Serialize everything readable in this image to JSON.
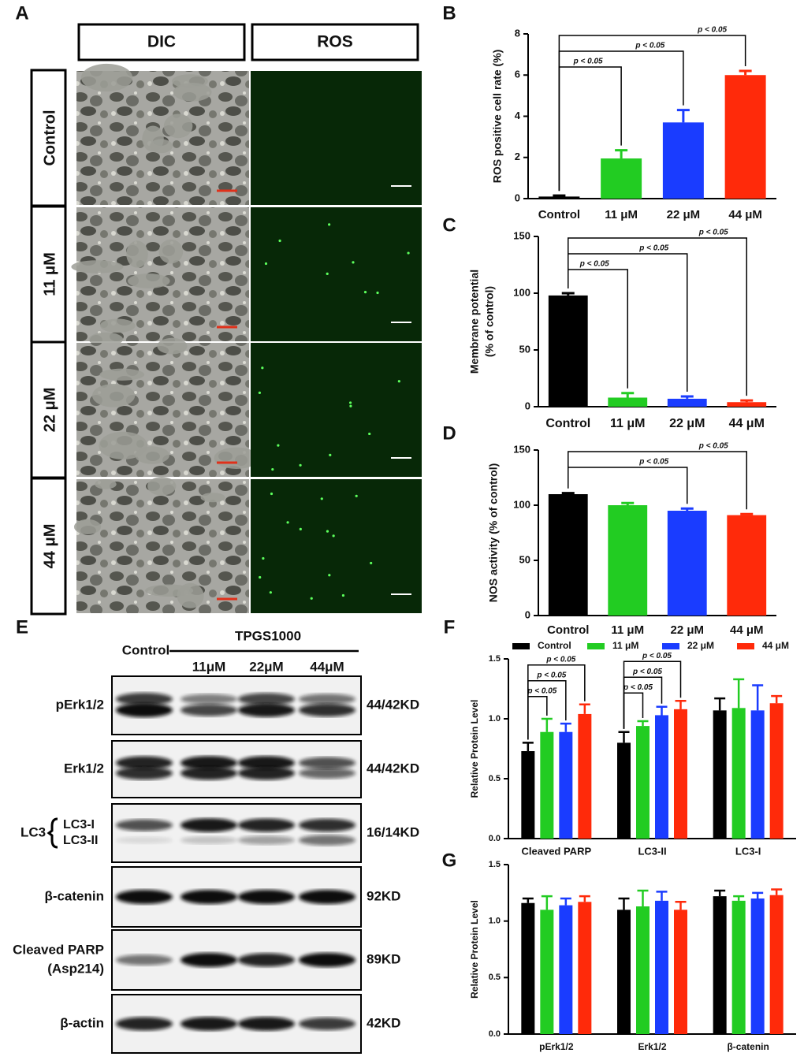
{
  "panel_labels": [
    "A",
    "B",
    "C",
    "D",
    "E",
    "F",
    "G"
  ],
  "microscopy": {
    "columns": [
      "DIC",
      "ROS"
    ],
    "rows": [
      "Control",
      "11 μM",
      "22 μM",
      "44 μM"
    ]
  },
  "western_blot": {
    "control_label": "Control",
    "treatment": "TPGS1000",
    "lanes": [
      "11μM",
      "22μM",
      "44μM"
    ],
    "rows": [
      {
        "labels": [
          "pErk1/2"
        ],
        "size": "44/42KD"
      },
      {
        "labels": [
          "Erk1/2"
        ],
        "size": "44/42KD"
      },
      {
        "group": "LC3",
        "labels": [
          "LC3-I",
          "LC3-II"
        ],
        "size": "16/14KD"
      },
      {
        "labels": [
          "β-catenin"
        ],
        "size": "92KD"
      },
      {
        "labels": [
          "Cleaved PARP",
          "(Asp214)"
        ],
        "size": "89KD"
      },
      {
        "labels": [
          "β-actin"
        ],
        "size": "42KD"
      }
    ]
  },
  "chart_data": [
    {
      "type": "bar",
      "ylabel": [
        "ROS positive cell rate (%)"
      ],
      "categories": [
        "Control",
        "11 μM",
        "22 μM",
        "44 μM"
      ],
      "values": [
        0.1,
        1.95,
        3.7,
        6.0
      ],
      "errors": [
        0.05,
        0.4,
        0.6,
        0.2
      ],
      "colors": [
        "#000000",
        "#22cc22",
        "#1a3cff",
        "#ff2a0a"
      ],
      "annotations": [
        null,
        "p < 0.05",
        "p < 0.05",
        "p < 0.05"
      ],
      "ylim": [
        0,
        8
      ],
      "yticks": [
        0,
        2,
        4,
        6,
        8
      ]
    },
    {
      "type": "bar",
      "ylabel": [
        "Membrane potential",
        "(% of control)"
      ],
      "categories": [
        "Control",
        "11 μM",
        "22 μM",
        "44 μM"
      ],
      "values": [
        98,
        8,
        7,
        4
      ],
      "errors": [
        2,
        4,
        2,
        1.5
      ],
      "colors": [
        "#000000",
        "#22cc22",
        "#1a3cff",
        "#ff2a0a"
      ],
      "annotations": [
        null,
        "p < 0.05",
        "p < 0.05",
        "p < 0.05"
      ],
      "ylim": [
        0,
        150
      ],
      "yticks": [
        0,
        50,
        100,
        150
      ]
    },
    {
      "type": "bar",
      "ylabel": [
        "NOS activity  (% of control)"
      ],
      "categories": [
        "Control",
        "11 μM",
        "22 μM",
        "44 μM"
      ],
      "values": [
        110,
        100,
        95,
        91
      ],
      "errors": [
        1,
        2,
        2,
        1
      ],
      "colors": [
        "#000000",
        "#22cc22",
        "#1a3cff",
        "#ff2a0a"
      ],
      "annotations": [
        null,
        null,
        "p < 0.05",
        "p < 0.05"
      ],
      "ylim": [
        0,
        150
      ],
      "yticks": [
        0,
        50,
        100,
        150
      ]
    },
    {
      "type": "grouped_bar",
      "ylabel": [
        "Relative Protein Level"
      ],
      "legend": "top",
      "categories": [
        "Cleaved PARP",
        "LC3-II",
        "LC3-I"
      ],
      "series": [
        {
          "name": "Control",
          "color": "#000000",
          "values": [
            0.73,
            0.8,
            1.07
          ],
          "errors": [
            0.07,
            0.09,
            0.1
          ]
        },
        {
          "name": "11 μM",
          "color": "#22cc22",
          "values": [
            0.89,
            0.94,
            1.09
          ],
          "errors": [
            0.11,
            0.04,
            0.24
          ],
          "annotations": [
            "p < 0.05",
            "p < 0.05",
            null
          ]
        },
        {
          "name": "22 μM",
          "color": "#1a3cff",
          "values": [
            0.89,
            1.03,
            1.07
          ],
          "errors": [
            0.07,
            0.07,
            0.21
          ],
          "annotations": [
            "p < 0.05",
            "p < 0.05",
            null
          ]
        },
        {
          "name": "44 μM",
          "color": "#ff2a0a",
          "values": [
            1.04,
            1.08,
            1.13
          ],
          "errors": [
            0.08,
            0.07,
            0.06
          ],
          "annotations": [
            "p < 0.05",
            "p < 0.05",
            null
          ]
        }
      ],
      "ylim": [
        0,
        1.5
      ],
      "yticks": [
        {
          "value": 0,
          "label": "0.0"
        },
        0.5,
        {
          "value": 1,
          "label": "1.0"
        },
        1.5
      ]
    },
    {
      "type": "grouped_bar",
      "ylabel": [
        "Relative Protein Level"
      ],
      "categories": [
        "pErk1/2",
        "Erk1/2",
        "β-catenin"
      ],
      "series": [
        {
          "name": "Control",
          "color": "#000000",
          "values": [
            1.16,
            1.1,
            1.22
          ],
          "errors": [
            0.04,
            0.1,
            0.05
          ]
        },
        {
          "name": "11 μM",
          "color": "#22cc22",
          "values": [
            1.1,
            1.13,
            1.18
          ],
          "errors": [
            0.12,
            0.14,
            0.04
          ]
        },
        {
          "name": "22 μM",
          "color": "#1a3cff",
          "values": [
            1.14,
            1.18,
            1.2
          ],
          "errors": [
            0.06,
            0.08,
            0.05
          ]
        },
        {
          "name": "44 μM",
          "color": "#ff2a0a",
          "values": [
            1.17,
            1.1,
            1.23
          ],
          "errors": [
            0.05,
            0.07,
            0.05
          ]
        }
      ],
      "ylim": [
        0,
        1.5
      ],
      "yticks": [
        {
          "value": 0,
          "label": "0.0"
        },
        0.5,
        {
          "value": 1,
          "label": "1.0"
        },
        1.5
      ]
    }
  ]
}
